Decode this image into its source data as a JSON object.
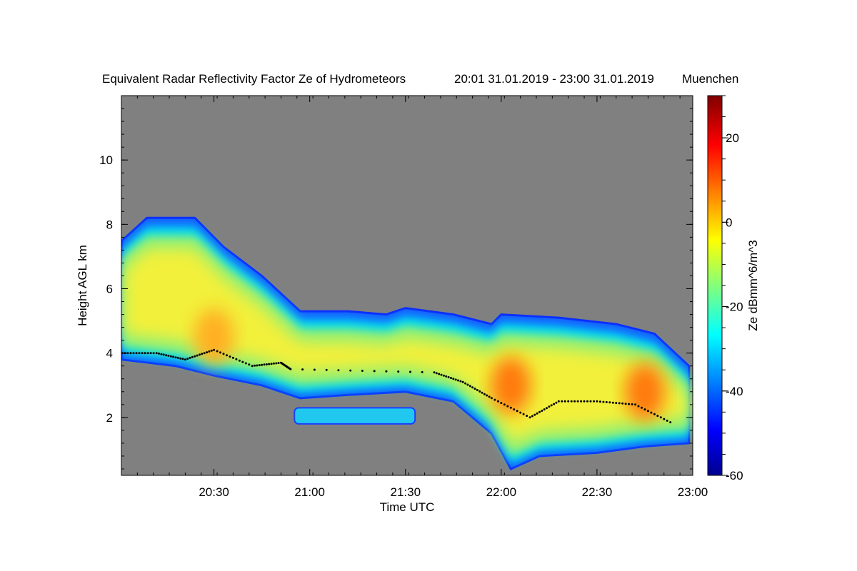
{
  "chart_data": {
    "type": "heatmap",
    "title": "Equivalent Radar Reflectivity Factor Ze of Hydrometeors",
    "time_range_text": "20:01 31.01.2019 - 23:00 31.01.2019",
    "station": "Muenchen",
    "xlabel": "Time UTC",
    "ylabel": "Height AGL km",
    "colorbar_label": "Ze dBmm^6/m^3",
    "x_range": [
      "20:01",
      "23:00"
    ],
    "x_ticks": [
      "20:30",
      "21:00",
      "21:30",
      "22:00",
      "22:30",
      "23:00"
    ],
    "ylim": [
      0.2,
      12.0
    ],
    "y_ticks": [
      2,
      4,
      6,
      8,
      10
    ],
    "colorbar_range": [
      -60,
      30
    ],
    "colorbar_ticks": [
      20,
      0,
      -20,
      -40,
      -60
    ],
    "colormap": "jet",
    "background_color": "#808080",
    "grid": false,
    "legend": "colorbar-right",
    "echo_layer": {
      "description_units": "time as hours after 20:00, height in km",
      "top": [
        [
          0.02,
          7.5
        ],
        [
          0.15,
          8.2
        ],
        [
          0.4,
          8.2
        ],
        [
          0.55,
          7.3
        ],
        [
          0.75,
          6.4
        ],
        [
          0.95,
          5.3
        ],
        [
          1.2,
          5.3
        ],
        [
          1.4,
          5.2
        ],
        [
          1.5,
          5.4
        ],
        [
          1.75,
          5.2
        ],
        [
          1.95,
          4.9
        ],
        [
          2.0,
          5.2
        ],
        [
          2.3,
          5.1
        ],
        [
          2.6,
          4.9
        ],
        [
          2.8,
          4.6
        ],
        [
          2.98,
          3.6
        ]
      ],
      "base": [
        [
          0.02,
          3.8
        ],
        [
          0.3,
          3.6
        ],
        [
          0.5,
          3.3
        ],
        [
          0.75,
          3.0
        ],
        [
          0.95,
          2.6
        ],
        [
          1.2,
          2.7
        ],
        [
          1.5,
          2.8
        ],
        [
          1.75,
          2.5
        ],
        [
          1.95,
          1.5
        ],
        [
          2.05,
          0.4
        ],
        [
          2.2,
          0.8
        ],
        [
          2.5,
          0.9
        ],
        [
          2.75,
          1.1
        ],
        [
          2.98,
          1.2
        ]
      ],
      "max_reflectivity_dbz": 15,
      "cores": [
        {
          "time_h": 0.5,
          "height_km": 4.5,
          "dbz": 5
        },
        {
          "time_h": 2.05,
          "height_km": 3.0,
          "dbz": 15
        },
        {
          "time_h": 2.75,
          "height_km": 2.8,
          "dbz": 10
        }
      ]
    },
    "lower_layer": {
      "time_h": [
        0.92,
        1.55
      ],
      "height_km": [
        1.8,
        2.3
      ]
    },
    "melting_layer_marks": [
      [
        0.02,
        4.0
      ],
      [
        0.2,
        4.0
      ],
      [
        0.35,
        3.8
      ],
      [
        0.5,
        4.1
      ],
      [
        0.7,
        3.6
      ],
      [
        0.85,
        3.7
      ],
      [
        0.9,
        3.5
      ],
      [
        1.65,
        3.4
      ],
      [
        1.8,
        3.1
      ],
      [
        1.95,
        2.6
      ],
      [
        2.15,
        2.0
      ],
      [
        2.3,
        2.5
      ],
      [
        2.5,
        2.5
      ],
      [
        2.7,
        2.4
      ],
      [
        2.9,
        1.8
      ]
    ]
  }
}
